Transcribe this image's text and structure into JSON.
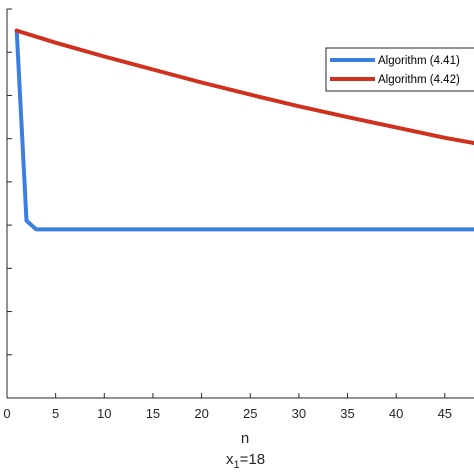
{
  "chart_data": {
    "type": "line",
    "title": "",
    "xlabel": "n",
    "ylabel": "",
    "caption": "x_1=18",
    "xlim": [
      0,
      48
    ],
    "ylim": [
      0,
      9
    ],
    "x_ticks": [
      0,
      5,
      10,
      15,
      20,
      25,
      30,
      35,
      40,
      45
    ],
    "y_ticks": [
      1,
      2,
      3,
      4,
      5,
      6,
      7,
      8,
      9
    ],
    "grid": false,
    "legend_position": "top-right",
    "series": [
      {
        "name": "Algorithm (4.41)",
        "color": "#3a7fe0",
        "x": [
          1,
          2,
          3,
          4,
          10,
          20,
          30,
          40,
          48
        ],
        "y": [
          8.5,
          4.1,
          3.9,
          3.9,
          3.9,
          3.9,
          3.9,
          3.9,
          3.9
        ]
      },
      {
        "name": "Algorithm (4.42)",
        "color": "#d0311e",
        "x": [
          1,
          5,
          10,
          15,
          20,
          25,
          30,
          35,
          40,
          45,
          48
        ],
        "y": [
          8.5,
          8.22,
          7.9,
          7.6,
          7.3,
          7.02,
          6.75,
          6.5,
          6.26,
          6.02,
          5.9
        ]
      }
    ]
  },
  "legend": {
    "entries": [
      "Algorithm (4.41)",
      "Algorithm (4.42)"
    ]
  },
  "labels": {
    "xlabel": "n",
    "caption_prefix": "x",
    "caption_sub": "1",
    "caption_suffix": "=18"
  }
}
